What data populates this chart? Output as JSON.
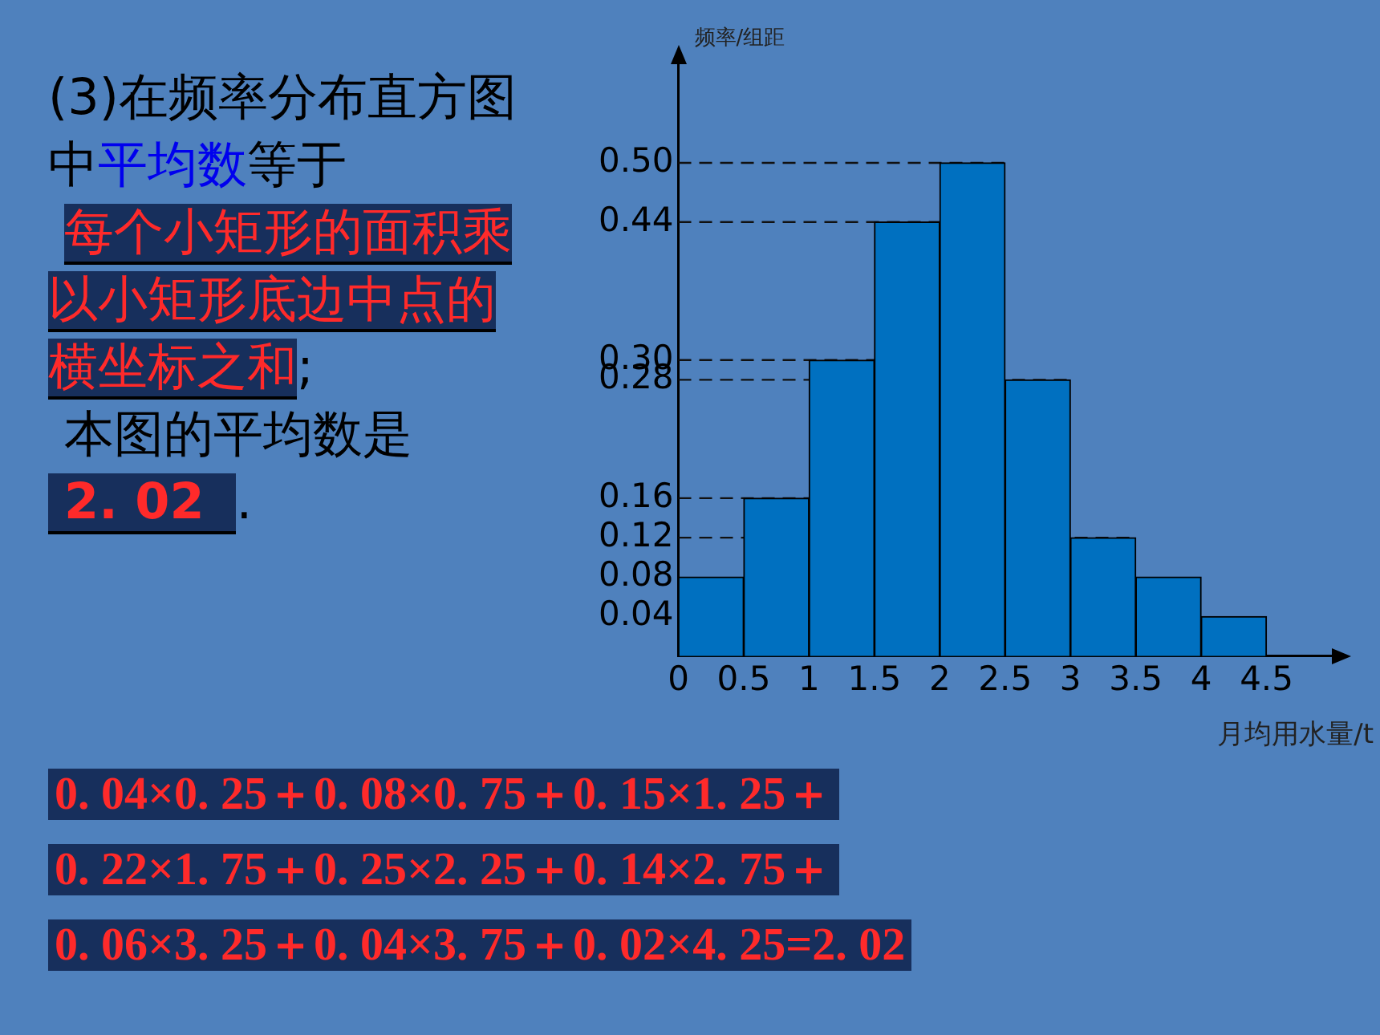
{
  "chart_data": {
    "type": "histogram",
    "ylabel": "频率/组距",
    "xlabel": "月均用水量/t",
    "bins": [
      0,
      0.5,
      1,
      1.5,
      2,
      2.5,
      3,
      3.5,
      4,
      4.5
    ],
    "values": [
      0.08,
      0.16,
      0.3,
      0.44,
      0.5,
      0.28,
      0.12,
      0.08,
      0.04
    ],
    "color": "#0070c0",
    "xlim": [
      0,
      5
    ],
    "xticks": [
      0,
      0.5,
      1,
      1.5,
      2,
      2.5,
      3,
      3.5,
      4,
      4.5
    ],
    "ylim": [
      0,
      0.6
    ],
    "yticks": [
      {
        "value": 0.04,
        "label": "0.04"
      },
      {
        "value": 0.08,
        "label": "0.08"
      },
      {
        "value": 0.12,
        "label": "0.12"
      },
      {
        "value": 0.16,
        "label": "0.16"
      },
      {
        "value": 0.28,
        "label": "0.28"
      },
      {
        "value": 0.3,
        "label": "0.30"
      },
      {
        "value": 0.44,
        "label": "0.44"
      },
      {
        "value": 0.5,
        "label": "0.50"
      }
    ],
    "ref_lines": [
      {
        "axis": "y",
        "value": 0.5,
        "line_style": "dashed"
      },
      {
        "axis": "y",
        "value": 0.44,
        "line_style": "dashed"
      },
      {
        "axis": "y",
        "value": 0.3,
        "line_style": "dashed"
      },
      {
        "axis": "y",
        "value": 0.28,
        "line_style": "dashed"
      },
      {
        "axis": "y",
        "value": 0.16,
        "line_style": "dashed"
      },
      {
        "axis": "y",
        "value": 0.12,
        "line_style": "dashed"
      }
    ],
    "grid": false,
    "legend": false,
    "annotations": [
      "(3)在频率分布直方图中",
      "平均数",
      "等于",
      "每个小矩形的面积乘以小矩形底边中点的横坐标之和",
      ";",
      "本图的平均数是",
      "2. 02",
      ".",
      "0. 04×0. 25＋0. 08×0. 75＋0. 15×1. 25＋",
      "0. 22×1. 75＋0. 25×2. 25＋0. 14×2. 75＋",
      "0. 06×3. 25＋0. 04×3. 75＋0. 02×4. 25=2. 02"
    ]
  }
}
